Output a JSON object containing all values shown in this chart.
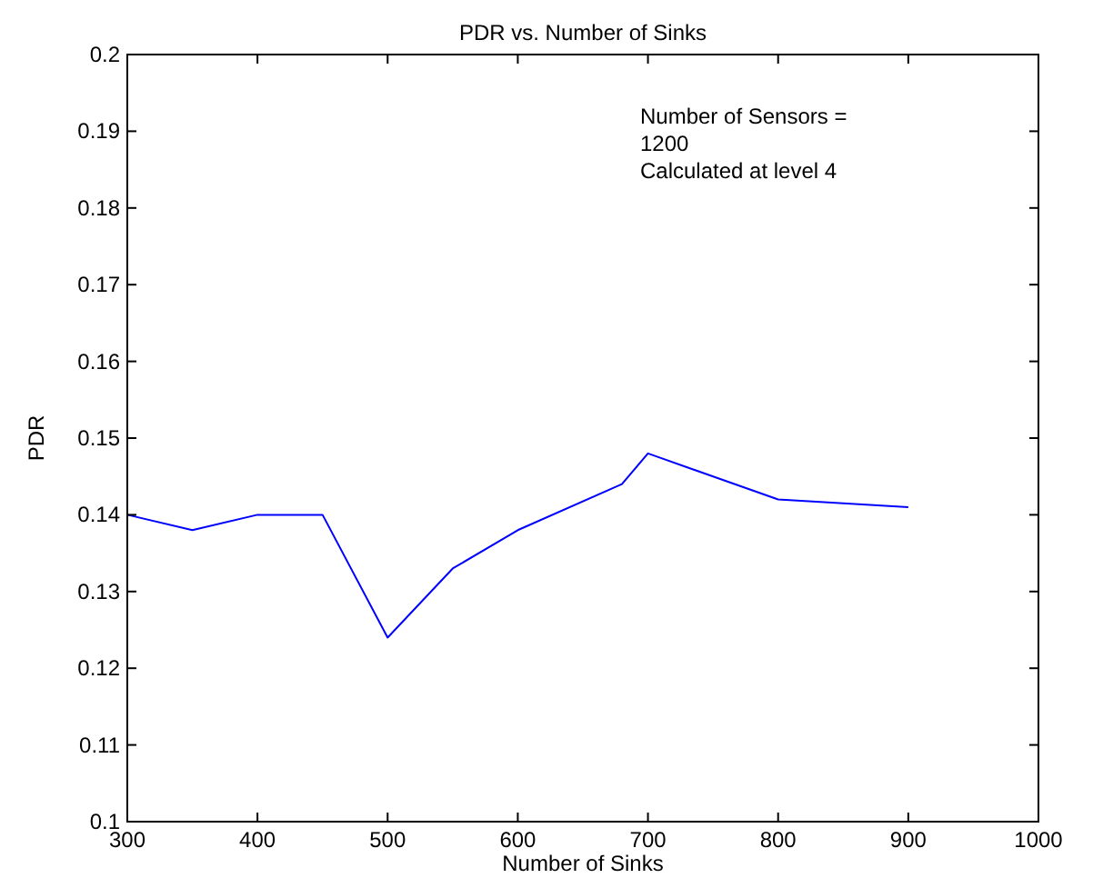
{
  "chart_data": {
    "type": "line",
    "title": "PDR vs. Number of Sinks",
    "xlabel": "Number of Sinks",
    "ylabel": "PDR",
    "x": [
      300,
      350,
      400,
      450,
      500,
      550,
      600,
      680,
      700,
      800,
      900
    ],
    "series": [
      {
        "color": "#0000ff",
        "values": [
          0.14,
          0.138,
          0.14,
          0.14,
          0.124,
          0.133,
          0.138,
          0.144,
          0.148,
          0.142,
          0.141
        ]
      }
    ],
    "xlim": [
      300,
      1000
    ],
    "xticks": [
      300,
      400,
      500,
      600,
      700,
      800,
      900,
      1000
    ],
    "ylim": [
      0.1,
      0.2
    ],
    "yticks": [
      0.1,
      0.11,
      0.12,
      0.13,
      0.14,
      0.15,
      0.16,
      0.17,
      0.18,
      0.19,
      0.2
    ],
    "grid": false,
    "marker": "none",
    "line_style": "solid",
    "annotations": [
      "Number of Sensors =",
      "1200",
      "Calculated at level 4"
    ]
  }
}
